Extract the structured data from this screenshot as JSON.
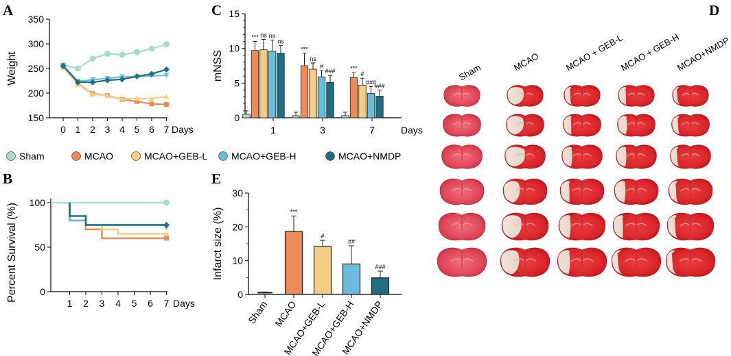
{
  "colors": {
    "Sham": "#a8dcc8",
    "MCAO": "#ee8a55",
    "MCAO+GEB-L": "#f4cc82",
    "MCAO+GEB-H": "#6bbbdc",
    "MCAO+NMDP": "#206e80"
  },
  "legend": {
    "items": [
      "Sham",
      "MCAO",
      "MCAO+GEB-L",
      "MCAO+GEB-H",
      "MCAO+NMDP"
    ]
  },
  "chart_data": [
    {
      "id": "A",
      "panel": "A",
      "type": "line",
      "ylabel": "Weight",
      "xunit": "Days",
      "x": [
        0,
        1,
        2,
        3,
        4,
        5,
        6,
        7
      ],
      "ylim": [
        150,
        350
      ],
      "yticks": [
        150,
        200,
        250,
        300,
        350
      ],
      "series": [
        {
          "name": "Sham",
          "values": [
            257,
            250,
            270,
            280,
            278,
            283,
            290,
            299
          ]
        },
        {
          "name": "MCAO",
          "values": [
            253,
            219,
            199,
            195,
            187,
            183,
            178,
            177
          ]
        },
        {
          "name": "MCAO+GEB-L",
          "values": [
            254,
            218,
            198,
            195,
            188,
            189,
            189,
            193
          ]
        },
        {
          "name": "MCAO+GEB-H",
          "values": [
            256,
            224,
            227,
            230,
            233,
            233,
            235,
            236
          ]
        },
        {
          "name": "MCAO+NMDP",
          "values": [
            255,
            222,
            222,
            226,
            228,
            234,
            239,
            248
          ]
        }
      ]
    },
    {
      "id": "B",
      "panel": "B",
      "type": "line",
      "ylabel": "Percent Survival (%)",
      "xunit": "Days",
      "x": [
        1,
        2,
        3,
        4,
        5,
        6,
        7
      ],
      "ylim": [
        0,
        100
      ],
      "yticks": [
        0,
        50,
        100
      ],
      "series": [
        {
          "name": "Sham",
          "steps": [
            [
              0,
              100
            ],
            [
              7,
              100
            ]
          ],
          "markers": [
            [
              7,
              100
            ]
          ]
        },
        {
          "name": "MCAO",
          "steps": [
            [
              1,
              80
            ],
            [
              2,
              70
            ],
            [
              3,
              60
            ],
            [
              7,
              60
            ]
          ],
          "markers": [
            [
              7,
              60
            ]
          ]
        },
        {
          "name": "MCAO+GEB-L",
          "steps": [
            [
              1,
              80
            ],
            [
              2,
              75
            ],
            [
              3,
              70
            ],
            [
              4,
              65
            ],
            [
              7,
              65
            ]
          ],
          "markers": [
            [
              7,
              65
            ]
          ]
        },
        {
          "name": "MCAO+GEB-H",
          "steps": [
            [
              1,
              80
            ],
            [
              2,
              75
            ],
            [
              7,
              75
            ]
          ],
          "markers": [
            [
              7,
              72
            ]
          ]
        },
        {
          "name": "MCAO+NMDP",
          "steps": [
            [
              1,
              85
            ],
            [
              2,
              75
            ],
            [
              7,
              75
            ]
          ],
          "markers": [
            [
              7,
              75
            ]
          ]
        }
      ]
    },
    {
      "id": "C",
      "panel": "C",
      "type": "bar",
      "ylabel": "mNSS",
      "xunit": "Days",
      "categories": [
        "1",
        "3",
        "7"
      ],
      "ylim": [
        0,
        15
      ],
      "yticks": [
        0,
        5,
        10,
        15
      ],
      "series": [
        {
          "name": "Sham",
          "values": [
            0.5,
            0.3,
            0.3
          ],
          "errors": [
            0.5,
            0.5,
            0.5
          ],
          "sig": [
            "",
            "",
            ""
          ]
        },
        {
          "name": "MCAO",
          "values": [
            9.7,
            7.5,
            5.8
          ],
          "errors": [
            1.3,
            1.8,
            0.7
          ],
          "sig": [
            "***",
            "***",
            "***"
          ]
        },
        {
          "name": "MCAO+GEB-L",
          "values": [
            9.8,
            7.0,
            4.7
          ],
          "errors": [
            1.5,
            0.9,
            1.0
          ],
          "sig": [
            "ns",
            "ns",
            "#"
          ]
        },
        {
          "name": "MCAO+GEB-H",
          "values": [
            9.6,
            5.9,
            3.5
          ],
          "errors": [
            1.6,
            0.9,
            1.0
          ],
          "sig": [
            "ns",
            "#",
            "###"
          ]
        },
        {
          "name": "MCAO+NMDP",
          "values": [
            9.3,
            5.1,
            3.1
          ],
          "errors": [
            1.1,
            1.0,
            0.9
          ],
          "sig": [
            "ns",
            "###",
            "###"
          ]
        }
      ]
    },
    {
      "id": "E",
      "panel": "E",
      "type": "bar",
      "ylabel": "Infarct size (%)",
      "categories": [
        "Sham",
        "MCAO",
        "MCAO+GEB-L",
        "MCAO+GEB-H",
        "MCAO+NMDP"
      ],
      "ylim": [
        0,
        30
      ],
      "yticks": [
        0,
        10,
        20,
        30
      ],
      "values": [
        0.5,
        18.6,
        14.2,
        9.0,
        4.9
      ],
      "errors": [
        0.2,
        4.6,
        1.8,
        5.4,
        2.0
      ],
      "sig": [
        "",
        "***",
        "#",
        "##",
        "###"
      ]
    }
  ],
  "panel_d": {
    "letter": "D",
    "column_labels": [
      "Sham",
      "MCAO",
      "MCAO + GEB-L",
      "MCAO + GEB-H",
      "MCAO+NMDP"
    ]
  }
}
